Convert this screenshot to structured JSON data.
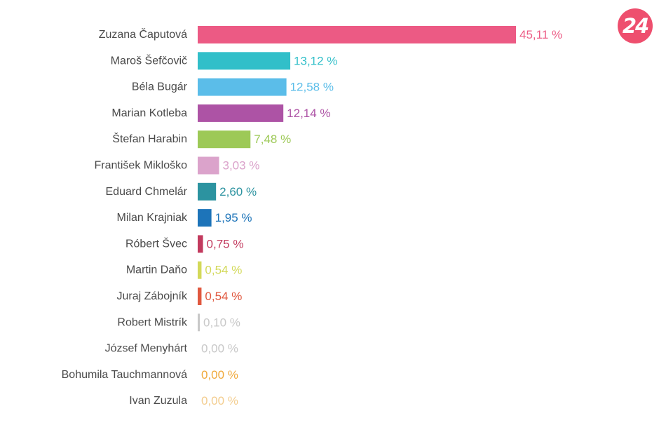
{
  "logo": {
    "text": "24",
    "color": "#ee4f6e"
  },
  "chart_data": {
    "type": "bar",
    "orientation": "horizontal",
    "title": "",
    "xlabel": "",
    "ylabel": "",
    "xlim": [
      0,
      45.11
    ],
    "grid": false,
    "value_suffix": " %",
    "categories": [
      "Zuzana Čaputová",
      "Maroš Šefčovič",
      "Béla Bugár",
      "Marian Kotleba",
      "Štefan Harabin",
      "František Mikloško",
      "Eduard Chmelár",
      "Milan Krajniak",
      "Róbert Švec",
      "Martin Daňo",
      "Juraj Zábojník",
      "Robert Mistrík",
      "József Menyhárt",
      "Bohumila Tauchmannová",
      "Ivan Zuzula"
    ],
    "values": [
      45.11,
      13.12,
      12.58,
      12.14,
      7.48,
      3.03,
      2.6,
      1.95,
      0.75,
      0.54,
      0.54,
      0.1,
      0.0,
      0.0,
      0.0
    ],
    "value_labels": [
      "45,11 %",
      "13,12 %",
      "12,58 %",
      "12,14 %",
      "7,48 %",
      "3,03 %",
      "2,60 %",
      "1,95 %",
      "0,75 %",
      "0,54 %",
      "0,54 %",
      "0,10 %",
      "0,00 %",
      "0,00 %",
      "0,00 %"
    ],
    "colors": [
      "#ec5a84",
      "#31bfc9",
      "#5bbde9",
      "#ad53a5",
      "#9dc957",
      "#dba3cb",
      "#2c93a0",
      "#1d74b9",
      "#c23a5e",
      "#d3d959",
      "#e0583f",
      "#c8c8c8",
      "#c8c8c8",
      "#f0a93b",
      "#f3cd8f"
    ]
  }
}
